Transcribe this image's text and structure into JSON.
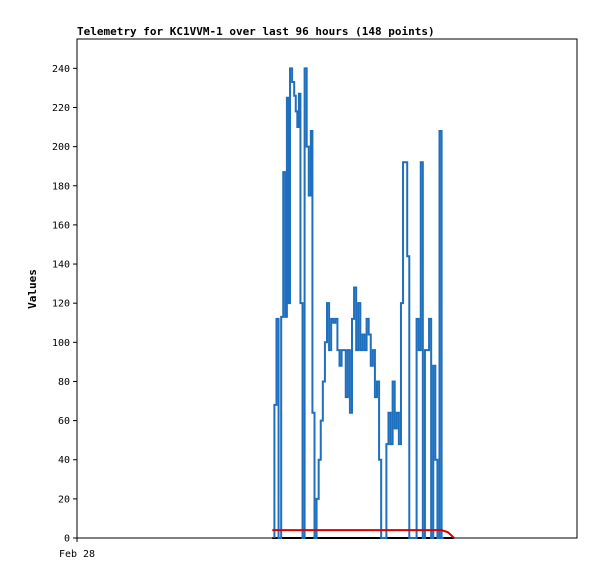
{
  "chart_data": {
    "type": "line",
    "title": "Telemetry for KC1VVM-1 over last 96 hours (148 points)",
    "xlabel": "",
    "ylabel": "Values",
    "x_tick_labels": [
      "Feb 28"
    ],
    "xlim": [
      0,
      96
    ],
    "ylim": [
      0,
      255
    ],
    "y_ticks": [
      0,
      20,
      40,
      60,
      80,
      100,
      120,
      140,
      160,
      180,
      200,
      220,
      240
    ],
    "grid": false,
    "legend": "none",
    "colors": {
      "series_main": "#1f6fbf",
      "series_red": "#dd0000",
      "series_black": "#000000"
    },
    "series": [
      {
        "values": [
          [
            37.9,
            0
          ],
          [
            37.9,
            68
          ],
          [
            38.3,
            68
          ],
          [
            38.3,
            112
          ],
          [
            38.7,
            112
          ],
          [
            38.7,
            0
          ],
          [
            39.2,
            0
          ],
          [
            39.2,
            113
          ],
          [
            39.6,
            113
          ],
          [
            39.6,
            187
          ],
          [
            40.0,
            187
          ],
          [
            40.0,
            113
          ],
          [
            40.3,
            113
          ],
          [
            40.3,
            225
          ],
          [
            40.6,
            225
          ],
          [
            40.6,
            120
          ],
          [
            40.9,
            120
          ],
          [
            40.9,
            240
          ],
          [
            41.3,
            240
          ],
          [
            41.3,
            233
          ],
          [
            41.7,
            233
          ],
          [
            41.7,
            226
          ],
          [
            42.0,
            226
          ],
          [
            42.0,
            218
          ],
          [
            42.3,
            218
          ],
          [
            42.3,
            210
          ],
          [
            42.6,
            210
          ],
          [
            42.6,
            227
          ],
          [
            42.9,
            227
          ],
          [
            42.9,
            120
          ],
          [
            43.3,
            120
          ],
          [
            43.3,
            0
          ],
          [
            43.7,
            0
          ],
          [
            43.7,
            240
          ],
          [
            44.1,
            240
          ],
          [
            44.1,
            200
          ],
          [
            44.5,
            200
          ],
          [
            44.5,
            175
          ],
          [
            44.9,
            175
          ],
          [
            44.9,
            208
          ],
          [
            45.2,
            208
          ],
          [
            45.2,
            64
          ],
          [
            45.6,
            64
          ],
          [
            45.6,
            0
          ],
          [
            46.0,
            0
          ],
          [
            46.0,
            20
          ],
          [
            46.4,
            20
          ],
          [
            46.4,
            40
          ],
          [
            46.8,
            40
          ],
          [
            46.8,
            60
          ],
          [
            47.2,
            60
          ],
          [
            47.2,
            80
          ],
          [
            47.6,
            80
          ],
          [
            47.6,
            100
          ],
          [
            48.0,
            100
          ],
          [
            48.0,
            120
          ],
          [
            48.4,
            120
          ],
          [
            48.4,
            96
          ],
          [
            48.8,
            96
          ],
          [
            48.8,
            112
          ],
          [
            49.2,
            112
          ],
          [
            49.2,
            110
          ],
          [
            49.6,
            110
          ],
          [
            49.6,
            112
          ],
          [
            50.0,
            112
          ],
          [
            50.0,
            96
          ],
          [
            50.4,
            96
          ],
          [
            50.4,
            88
          ],
          [
            50.8,
            88
          ],
          [
            50.8,
            96
          ],
          [
            51.2,
            96
          ],
          [
            51.2,
            96
          ],
          [
            51.6,
            96
          ],
          [
            51.6,
            72
          ],
          [
            52.0,
            72
          ],
          [
            52.0,
            96
          ],
          [
            52.4,
            96
          ],
          [
            52.4,
            64
          ],
          [
            52.8,
            64
          ],
          [
            52.8,
            112
          ],
          [
            53.2,
            112
          ],
          [
            53.2,
            128
          ],
          [
            53.6,
            128
          ],
          [
            53.6,
            96
          ],
          [
            54.0,
            96
          ],
          [
            54.0,
            120
          ],
          [
            54.4,
            120
          ],
          [
            54.4,
            96
          ],
          [
            54.8,
            96
          ],
          [
            54.8,
            104
          ],
          [
            55.2,
            104
          ],
          [
            55.2,
            96
          ],
          [
            55.6,
            96
          ],
          [
            55.6,
            112
          ],
          [
            56.0,
            112
          ],
          [
            56.0,
            104
          ],
          [
            56.4,
            104
          ],
          [
            56.4,
            88
          ],
          [
            56.8,
            88
          ],
          [
            56.8,
            96
          ],
          [
            57.2,
            96
          ],
          [
            57.2,
            72
          ],
          [
            57.6,
            72
          ],
          [
            57.6,
            80
          ],
          [
            58.0,
            80
          ],
          [
            58.0,
            40
          ],
          [
            58.4,
            40
          ],
          [
            58.4,
            0
          ],
          [
            59.4,
            0
          ],
          [
            59.4,
            48
          ],
          [
            59.8,
            48
          ],
          [
            59.8,
            64
          ],
          [
            60.2,
            64
          ],
          [
            60.2,
            48
          ],
          [
            60.6,
            48
          ],
          [
            60.6,
            80
          ],
          [
            61.0,
            80
          ],
          [
            61.0,
            56
          ],
          [
            61.4,
            56
          ],
          [
            61.4,
            64
          ],
          [
            61.8,
            64
          ],
          [
            61.8,
            48
          ],
          [
            62.2,
            48
          ],
          [
            62.2,
            120
          ],
          [
            62.6,
            120
          ],
          [
            62.6,
            192
          ],
          [
            63.4,
            192
          ],
          [
            63.4,
            144
          ],
          [
            63.8,
            144
          ],
          [
            63.8,
            0
          ],
          [
            65.2,
            0
          ],
          [
            65.2,
            112
          ],
          [
            65.6,
            112
          ],
          [
            65.6,
            96
          ],
          [
            66.0,
            96
          ],
          [
            66.0,
            192
          ],
          [
            66.4,
            192
          ],
          [
            66.4,
            0
          ],
          [
            66.8,
            0
          ],
          [
            66.8,
            96
          ],
          [
            67.2,
            96
          ],
          [
            67.2,
            96
          ],
          [
            67.6,
            96
          ],
          [
            67.6,
            112
          ],
          [
            68.0,
            112
          ],
          [
            68.0,
            0
          ],
          [
            68.4,
            0
          ],
          [
            68.4,
            88
          ],
          [
            68.8,
            88
          ],
          [
            68.8,
            40
          ],
          [
            69.2,
            40
          ],
          [
            69.2,
            0
          ],
          [
            69.6,
            0
          ],
          [
            69.6,
            208
          ],
          [
            70.0,
            208
          ],
          [
            70.0,
            0
          ],
          [
            70.4,
            0
          ]
        ]
      },
      {
        "values": [
          [
            37.5,
            4
          ],
          [
            70.0,
            4
          ],
          [
            71.2,
            3
          ],
          [
            72.0,
            1
          ],
          [
            72.4,
            0
          ]
        ]
      },
      {
        "values": [
          [
            37.5,
            0
          ],
          [
            72.4,
            0
          ]
        ]
      }
    ]
  }
}
